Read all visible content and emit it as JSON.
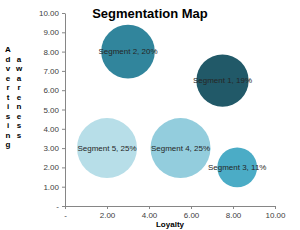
{
  "chart_data": {
    "type": "bubble",
    "title": "Segmentation Map",
    "x_label": "Loyalty",
    "y_label": "Advertising awareness",
    "x": [
      7.5,
      3.0,
      8.2,
      5.5,
      2.0
    ],
    "values": [
      6.5,
      8.0,
      2.0,
      3.0,
      3.0
    ],
    "sizes": [
      19,
      20,
      11,
      25,
      25
    ],
    "labels": [
      "Segment 1, 19%",
      "Segment 2, 20%",
      "Segment 3, 11%",
      "Segment 4, 25%",
      "Segment 5, 25%"
    ],
    "colors": [
      "#215968",
      "#31859c",
      "#4bacc6",
      "#93cddd",
      "#b7dee8"
    ],
    "xlim": [
      0,
      10
    ],
    "xticks": [
      {
        "value": 0,
        "label": "-"
      },
      {
        "value": 2,
        "label": "2.00"
      },
      {
        "value": 4,
        "label": "4.00"
      },
      {
        "value": 6,
        "label": "6.00"
      },
      {
        "value": 8,
        "label": "8.00"
      },
      {
        "value": 10,
        "label": "10.00"
      }
    ],
    "ylim": [
      0,
      10
    ],
    "yticks": [
      {
        "value": 0,
        "label": "-"
      },
      {
        "value": 1,
        "label": "1.00"
      },
      {
        "value": 2,
        "label": "2.00"
      },
      {
        "value": 3,
        "label": "3.00"
      },
      {
        "value": 4,
        "label": "4.00"
      },
      {
        "value": 5,
        "label": "5.00"
      },
      {
        "value": 6,
        "label": "6.00"
      },
      {
        "value": 7,
        "label": "7.00"
      },
      {
        "value": 8,
        "label": "8.00"
      },
      {
        "value": 9,
        "label": "9.00"
      },
      {
        "value": 10,
        "label": "10.00"
      }
    ],
    "grid": false
  }
}
